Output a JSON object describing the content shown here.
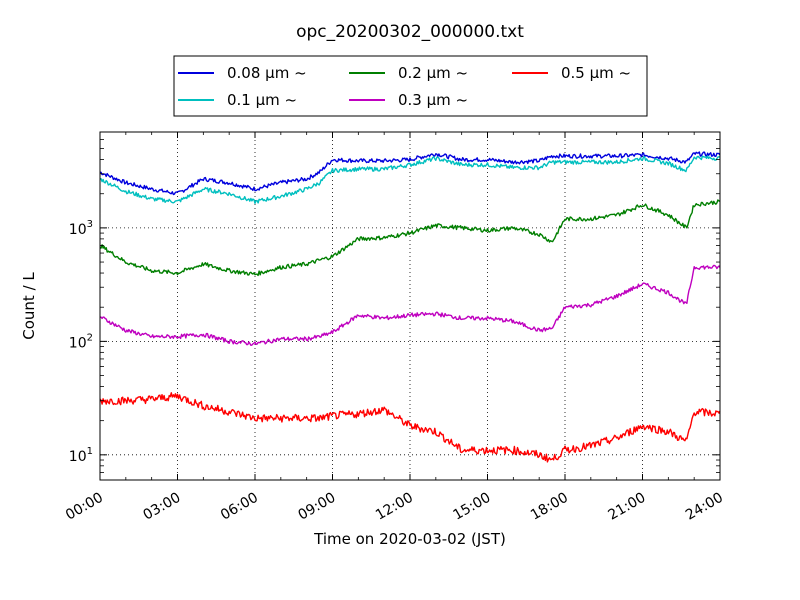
{
  "chart_data": {
    "type": "line",
    "title": "opc_20200302_000000.txt",
    "xlabel": "Time on 2020-03-02 (JST)",
    "ylabel": "Count / L",
    "xlim": [
      "00:00",
      "24:00"
    ],
    "xticks": [
      "00:00",
      "03:00",
      "06:00",
      "09:00",
      "12:00",
      "15:00",
      "18:00",
      "21:00",
      "24:00"
    ],
    "ylim": [
      6,
      7000
    ],
    "yscale": "log",
    "yticks": [
      {
        "value": 10,
        "base": "10",
        "exp": "1"
      },
      {
        "value": 100,
        "base": "10",
        "exp": "2"
      },
      {
        "value": 1000,
        "base": "10",
        "exp": "3"
      }
    ],
    "grid": true,
    "legend_position": "top-center",
    "x_hours": [
      0,
      1,
      2,
      3,
      4,
      5,
      6,
      7,
      8,
      8.5,
      9,
      10,
      11,
      12,
      13,
      14,
      15,
      16,
      17,
      17.5,
      18,
      19,
      20,
      21,
      22,
      22.7,
      23,
      24
    ],
    "series": [
      {
        "name": "0.08 μm ~",
        "color": "#0000dd",
        "values": [
          3100,
          2500,
          2200,
          2000,
          2700,
          2500,
          2200,
          2500,
          2700,
          3100,
          4000,
          3900,
          3900,
          4000,
          4500,
          4000,
          4000,
          3800,
          3900,
          4300,
          4300,
          4300,
          4300,
          4400,
          4100,
          3800,
          4500,
          4400
        ]
      },
      {
        "name": "0.1 μm ~",
        "color": "#00bfbf",
        "values": [
          2700,
          2100,
          1800,
          1700,
          2200,
          2000,
          1700,
          1900,
          2200,
          2500,
          3200,
          3300,
          3300,
          3600,
          4100,
          3600,
          3600,
          3400,
          3400,
          3800,
          3800,
          3800,
          3800,
          4100,
          3700,
          3200,
          4200,
          4100
        ]
      },
      {
        "name": "0.2 μm ~",
        "color": "#007f00",
        "values": [
          700,
          500,
          420,
          400,
          480,
          420,
          390,
          450,
          480,
          520,
          560,
          800,
          820,
          900,
          1050,
          1000,
          950,
          1000,
          880,
          750,
          1200,
          1200,
          1300,
          1600,
          1300,
          1000,
          1600,
          1700
        ]
      },
      {
        "name": "0.3 μm ~",
        "color": "#bf00bf",
        "values": [
          165,
          125,
          110,
          110,
          115,
          100,
          95,
          105,
          105,
          110,
          120,
          170,
          160,
          170,
          175,
          160,
          160,
          150,
          125,
          130,
          200,
          210,
          250,
          320,
          270,
          210,
          450,
          450
        ]
      },
      {
        "name": "0.5 μm ~",
        "color": "#ff0000",
        "values": [
          30,
          30,
          31,
          33,
          27,
          24,
          21,
          21,
          21,
          21,
          22,
          23,
          25,
          18,
          16,
          11,
          11,
          11,
          10,
          9,
          11,
          12,
          14,
          18,
          16,
          13,
          24,
          23
        ]
      }
    ]
  }
}
